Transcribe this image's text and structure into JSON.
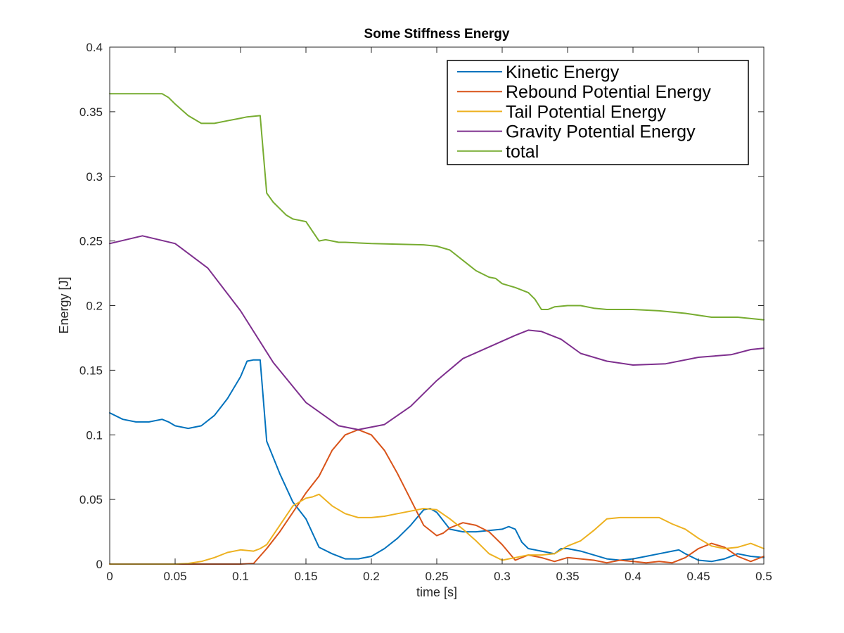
{
  "chart_data": {
    "type": "line",
    "title": "Some Stiffness Energy",
    "xlabel": "time [s]",
    "ylabel": "Energy [J]",
    "xlim": [
      0,
      0.5
    ],
    "ylim": [
      0,
      0.4
    ],
    "xticks": [
      0,
      0.05,
      0.1,
      0.15,
      0.2,
      0.25,
      0.3,
      0.35,
      0.4,
      0.45,
      0.5
    ],
    "xtick_labels": [
      "0",
      "0.05",
      "0.1",
      "0.15",
      "0.2",
      "0.25",
      "0.3",
      "0.35",
      "0.4",
      "0.45",
      "0.5"
    ],
    "yticks": [
      0,
      0.05,
      0.1,
      0.15,
      0.2,
      0.25,
      0.3,
      0.35,
      0.4
    ],
    "ytick_labels": [
      "0",
      "0.05",
      "0.1",
      "0.15",
      "0.2",
      "0.25",
      "0.3",
      "0.35",
      "0.4"
    ],
    "grid": false,
    "legend_position": "top-right",
    "series": [
      {
        "name": "Kinetic Energy",
        "color": "#0072bd",
        "x": [
          0,
          0.01,
          0.02,
          0.03,
          0.04,
          0.045,
          0.05,
          0.06,
          0.07,
          0.08,
          0.09,
          0.1,
          0.105,
          0.11,
          0.115,
          0.12,
          0.13,
          0.14,
          0.15,
          0.16,
          0.17,
          0.18,
          0.19,
          0.2,
          0.21,
          0.22,
          0.23,
          0.24,
          0.245,
          0.25,
          0.26,
          0.27,
          0.28,
          0.29,
          0.3,
          0.305,
          0.31,
          0.315,
          0.32,
          0.33,
          0.34,
          0.345,
          0.35,
          0.36,
          0.37,
          0.38,
          0.39,
          0.4,
          0.41,
          0.42,
          0.43,
          0.435,
          0.44,
          0.45,
          0.46,
          0.47,
          0.48,
          0.49,
          0.5
        ],
        "y": [
          0.117,
          0.112,
          0.11,
          0.11,
          0.112,
          0.11,
          0.107,
          0.105,
          0.107,
          0.115,
          0.128,
          0.145,
          0.157,
          0.158,
          0.158,
          0.095,
          0.07,
          0.048,
          0.035,
          0.013,
          0.008,
          0.004,
          0.004,
          0.006,
          0.012,
          0.02,
          0.03,
          0.042,
          0.043,
          0.04,
          0.027,
          0.025,
          0.025,
          0.026,
          0.027,
          0.029,
          0.027,
          0.017,
          0.012,
          0.01,
          0.008,
          0.012,
          0.012,
          0.01,
          0.007,
          0.004,
          0.003,
          0.004,
          0.006,
          0.008,
          0.01,
          0.011,
          0.008,
          0.003,
          0.002,
          0.004,
          0.008,
          0.006,
          0.005
        ]
      },
      {
        "name": "Rebound Potential Energy",
        "color": "#d95319",
        "x": [
          0,
          0.05,
          0.1,
          0.11,
          0.12,
          0.13,
          0.14,
          0.15,
          0.16,
          0.17,
          0.18,
          0.19,
          0.2,
          0.21,
          0.22,
          0.23,
          0.24,
          0.25,
          0.255,
          0.26,
          0.27,
          0.28,
          0.29,
          0.3,
          0.31,
          0.32,
          0.33,
          0.34,
          0.35,
          0.36,
          0.37,
          0.38,
          0.39,
          0.4,
          0.41,
          0.42,
          0.43,
          0.44,
          0.45,
          0.46,
          0.47,
          0.48,
          0.49,
          0.5
        ],
        "y": [
          0,
          0,
          0,
          0.0005,
          0.012,
          0.025,
          0.04,
          0.055,
          0.068,
          0.088,
          0.1,
          0.104,
          0.1,
          0.088,
          0.07,
          0.05,
          0.03,
          0.022,
          0.024,
          0.028,
          0.032,
          0.03,
          0.025,
          0.015,
          0.003,
          0.007,
          0.005,
          0.002,
          0.005,
          0.004,
          0.003,
          0.001,
          0.003,
          0.002,
          0.001,
          0.002,
          0.001,
          0.005,
          0.012,
          0.016,
          0.013,
          0.006,
          0.002,
          0.006
        ]
      },
      {
        "name": "Tail Potential Energy",
        "color": "#edb120",
        "x": [
          0,
          0.05,
          0.06,
          0.07,
          0.08,
          0.09,
          0.1,
          0.11,
          0.115,
          0.12,
          0.13,
          0.14,
          0.15,
          0.155,
          0.16,
          0.17,
          0.18,
          0.19,
          0.2,
          0.21,
          0.22,
          0.23,
          0.24,
          0.25,
          0.26,
          0.27,
          0.28,
          0.29,
          0.3,
          0.31,
          0.32,
          0.33,
          0.34,
          0.35,
          0.36,
          0.37,
          0.38,
          0.39,
          0.4,
          0.41,
          0.42,
          0.43,
          0.44,
          0.45,
          0.46,
          0.47,
          0.48,
          0.49,
          0.5
        ],
        "y": [
          0,
          0,
          0.0005,
          0.002,
          0.005,
          0.009,
          0.011,
          0.01,
          0.012,
          0.015,
          0.03,
          0.045,
          0.051,
          0.052,
          0.054,
          0.045,
          0.039,
          0.036,
          0.036,
          0.037,
          0.039,
          0.041,
          0.043,
          0.042,
          0.035,
          0.027,
          0.018,
          0.008,
          0.003,
          0.005,
          0.007,
          0.007,
          0.008,
          0.014,
          0.018,
          0.026,
          0.035,
          0.036,
          0.036,
          0.036,
          0.036,
          0.031,
          0.027,
          0.02,
          0.014,
          0.012,
          0.013,
          0.016,
          0.012
        ]
      },
      {
        "name": "Gravity Potential Energy",
        "color": "#7e2f8e",
        "x": [
          0,
          0.025,
          0.05,
          0.075,
          0.1,
          0.125,
          0.15,
          0.175,
          0.19,
          0.21,
          0.23,
          0.25,
          0.27,
          0.29,
          0.31,
          0.32,
          0.33,
          0.345,
          0.36,
          0.38,
          0.4,
          0.425,
          0.45,
          0.475,
          0.49,
          0.5
        ],
        "y": [
          0.248,
          0.254,
          0.248,
          0.229,
          0.196,
          0.156,
          0.125,
          0.107,
          0.104,
          0.108,
          0.122,
          0.142,
          0.159,
          0.168,
          0.177,
          0.181,
          0.18,
          0.174,
          0.163,
          0.157,
          0.154,
          0.155,
          0.16,
          0.162,
          0.166,
          0.167
        ]
      },
      {
        "name": "total",
        "color": "#77ac30",
        "x": [
          0,
          0.04,
          0.045,
          0.05,
          0.06,
          0.07,
          0.08,
          0.09,
          0.1,
          0.105,
          0.115,
          0.12,
          0.125,
          0.13,
          0.135,
          0.14,
          0.145,
          0.15,
          0.16,
          0.165,
          0.17,
          0.175,
          0.18,
          0.2,
          0.24,
          0.25,
          0.26,
          0.27,
          0.28,
          0.29,
          0.295,
          0.3,
          0.31,
          0.32,
          0.325,
          0.33,
          0.335,
          0.34,
          0.35,
          0.36,
          0.37,
          0.38,
          0.4,
          0.42,
          0.44,
          0.46,
          0.48,
          0.49,
          0.5
        ],
        "y": [
          0.364,
          0.364,
          0.361,
          0.356,
          0.347,
          0.341,
          0.341,
          0.343,
          0.345,
          0.346,
          0.347,
          0.287,
          0.28,
          0.275,
          0.27,
          0.267,
          0.266,
          0.265,
          0.25,
          0.251,
          0.25,
          0.249,
          0.249,
          0.248,
          0.247,
          0.246,
          0.243,
          0.235,
          0.227,
          0.222,
          0.221,
          0.217,
          0.214,
          0.21,
          0.205,
          0.197,
          0.197,
          0.199,
          0.2,
          0.2,
          0.198,
          0.197,
          0.197,
          0.196,
          0.194,
          0.191,
          0.191,
          0.19,
          0.189
        ]
      }
    ]
  }
}
